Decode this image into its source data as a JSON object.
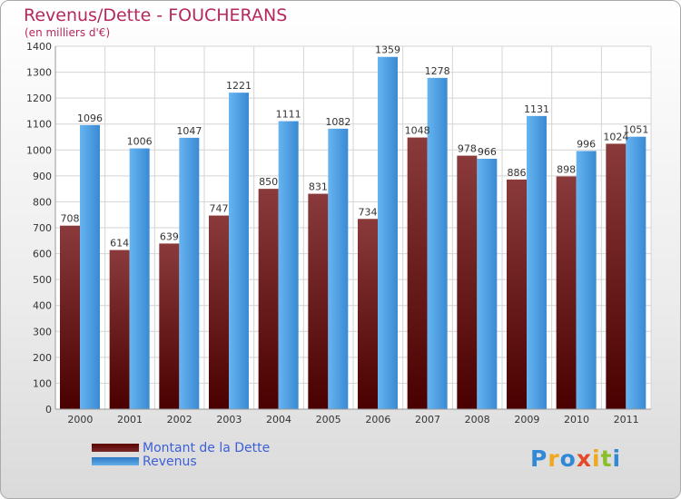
{
  "header": {
    "title": "Revenus/Dette - FOUCHERANS",
    "subtitle": "(en milliers d'€)"
  },
  "chart_data": {
    "type": "bar",
    "title": "Revenus/Dette - FOUCHERANS",
    "subtitle": "(en milliers d'€)",
    "categories": [
      "2000",
      "2001",
      "2002",
      "2003",
      "2004",
      "2005",
      "2006",
      "2007",
      "2008",
      "2009",
      "2010",
      "2011"
    ],
    "series": [
      {
        "name": "Montant de la Dette",
        "color": "#7a2a2a",
        "values": [
          708,
          614,
          639,
          747,
          850,
          831,
          734,
          1048,
          978,
          886,
          898,
          1024
        ]
      },
      {
        "name": "Revenus",
        "color": "#4ea3e6",
        "values": [
          1096,
          1006,
          1047,
          1221,
          1111,
          1082,
          1359,
          1278,
          966,
          1131,
          996,
          1051
        ]
      }
    ],
    "ylim": [
      0,
      1400
    ],
    "yticks": [
      0,
      100,
      200,
      300,
      400,
      500,
      600,
      700,
      800,
      900,
      1000,
      1100,
      1200,
      1300,
      1400
    ],
    "grid": true,
    "xlabel": "",
    "ylabel": ""
  },
  "legend": {
    "items": [
      {
        "label": "Montant de la Dette"
      },
      {
        "label": "Revenus"
      }
    ]
  },
  "logo": {
    "letters": [
      "P",
      "r",
      "o",
      "x",
      "i",
      "t",
      "i"
    ]
  }
}
